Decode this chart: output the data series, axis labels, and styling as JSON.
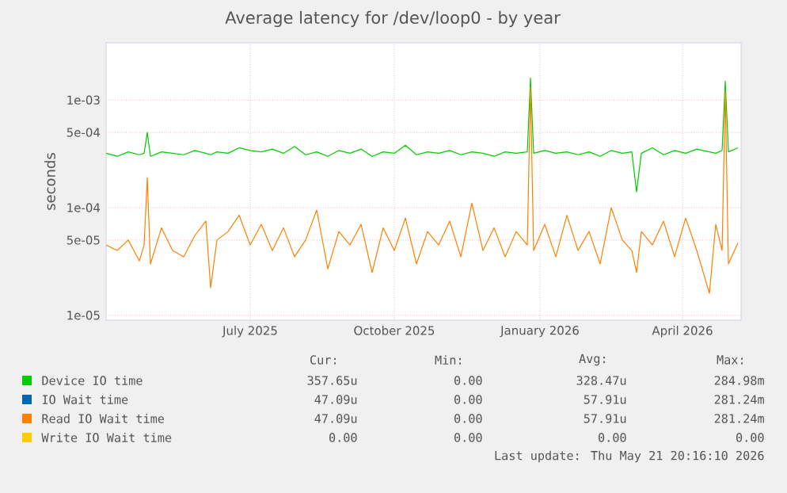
{
  "chart_data": {
    "type": "line",
    "title": "Average latency for /dev/loop0 - by year",
    "ylabel": "seconds",
    "log": "y",
    "grid": true,
    "legend": "bottom",
    "xlim": [
      "2025-04-16",
      "2026-05-22"
    ],
    "xticks": [
      {
        "value": "2025-07-16",
        "label": "July 2025"
      },
      {
        "value": "2025-10-15",
        "label": "October 2025"
      },
      {
        "value": "2026-01-15",
        "label": "January 2026"
      },
      {
        "value": "2026-04-15",
        "label": "April 2026"
      }
    ],
    "ylim": [
      9e-06,
      0.0034
    ],
    "yticks": [
      {
        "value": 1e-05,
        "label": "1e-05"
      },
      {
        "value": 5e-05,
        "label": "5e-05"
      },
      {
        "value": 0.0001,
        "label": "1e-04"
      },
      {
        "value": 0.0005,
        "label": "5e-04"
      },
      {
        "value": 0.001,
        "label": "1e-03"
      }
    ],
    "x": [
      "2025-04-16",
      "2025-04-23",
      "2025-04-30",
      "2025-05-07",
      "2025-05-10",
      "2025-05-12",
      "2025-05-14",
      "2025-05-21",
      "2025-05-28",
      "2025-06-04",
      "2025-06-11",
      "2025-06-18",
      "2025-06-21",
      "2025-06-25",
      "2025-07-02",
      "2025-07-09",
      "2025-07-16",
      "2025-07-23",
      "2025-07-30",
      "2025-08-06",
      "2025-08-13",
      "2025-08-20",
      "2025-08-27",
      "2025-09-03",
      "2025-09-10",
      "2025-09-17",
      "2025-09-24",
      "2025-10-01",
      "2025-10-08",
      "2025-10-15",
      "2025-10-22",
      "2025-10-29",
      "2025-11-05",
      "2025-11-12",
      "2025-11-19",
      "2025-11-26",
      "2025-12-03",
      "2025-12-10",
      "2025-12-17",
      "2025-12-24",
      "2025-12-31",
      "2026-01-07",
      "2026-01-09",
      "2026-01-11",
      "2026-01-18",
      "2026-01-25",
      "2026-02-01",
      "2026-02-08",
      "2026-02-15",
      "2026-02-22",
      "2026-03-01",
      "2026-03-08",
      "2026-03-14",
      "2026-03-17",
      "2026-03-20",
      "2026-03-27",
      "2026-04-03",
      "2026-04-10",
      "2026-04-17",
      "2026-04-24",
      "2026-05-02",
      "2026-05-06",
      "2026-05-10",
      "2026-05-12",
      "2026-05-14",
      "2026-05-20"
    ],
    "series": [
      {
        "name": "Device IO time",
        "color": "#00cc00",
        "values": [
          0.00032,
          0.0003,
          0.00033,
          0.00031,
          0.00032,
          0.0005,
          0.0003,
          0.00033,
          0.00032,
          0.00031,
          0.00034,
          0.00032,
          0.00031,
          0.00033,
          0.00032,
          0.00036,
          0.00034,
          0.00033,
          0.00035,
          0.00032,
          0.00037,
          0.00031,
          0.00033,
          0.0003,
          0.00034,
          0.00032,
          0.00035,
          0.0003,
          0.00033,
          0.00032,
          0.00038,
          0.00031,
          0.00033,
          0.00032,
          0.00034,
          0.00031,
          0.00033,
          0.00032,
          0.0003,
          0.00033,
          0.00032,
          0.00033,
          0.0016,
          0.00032,
          0.00034,
          0.00032,
          0.00033,
          0.00031,
          0.00033,
          0.0003,
          0.00034,
          0.00032,
          0.00033,
          0.00014,
          0.00032,
          0.00036,
          0.00031,
          0.00034,
          0.00032,
          0.00035,
          0.00033,
          0.00032,
          0.00034,
          0.0015,
          0.00033,
          0.00036
        ]
      },
      {
        "name": "IO Wait time",
        "color": "#0066b3",
        "values": [
          null,
          null,
          null,
          null,
          null,
          null,
          null,
          null,
          null,
          null,
          null,
          null,
          null,
          null,
          null,
          null,
          null,
          null,
          null,
          null,
          null,
          null,
          null,
          null,
          null,
          null,
          null,
          null,
          null,
          null,
          null,
          null,
          null,
          null,
          null,
          null,
          null,
          null,
          null,
          null,
          null,
          null,
          null,
          null,
          null,
          null,
          null,
          null,
          null,
          null,
          null,
          null,
          null,
          null,
          null,
          null,
          null,
          null,
          null,
          null,
          null,
          null,
          null,
          null,
          null,
          null
        ]
      },
      {
        "name": "Read IO Wait time",
        "color": "#ff8000",
        "values": [
          4.5e-05,
          4e-05,
          5e-05,
          3.2e-05,
          4.5e-05,
          0.00019,
          3e-05,
          6.5e-05,
          4e-05,
          3.5e-05,
          5.5e-05,
          7.5e-05,
          1.8e-05,
          5e-05,
          6e-05,
          8.5e-05,
          4.5e-05,
          7e-05,
          4e-05,
          6.5e-05,
          3.5e-05,
          5e-05,
          9.5e-05,
          2.7e-05,
          6e-05,
          4.5e-05,
          7e-05,
          2.5e-05,
          6.5e-05,
          4e-05,
          8e-05,
          3e-05,
          6e-05,
          4.5e-05,
          7.5e-05,
          3.5e-05,
          0.00011,
          4e-05,
          6.5e-05,
          3.5e-05,
          6e-05,
          4.5e-05,
          0.0013,
          4e-05,
          7e-05,
          3.5e-05,
          8.5e-05,
          4e-05,
          6e-05,
          3e-05,
          0.0001,
          5e-05,
          4e-05,
          2.5e-05,
          6e-05,
          4.5e-05,
          7.5e-05,
          3.5e-05,
          8e-05,
          4e-05,
          1.6e-05,
          7e-05,
          4e-05,
          0.0012,
          3e-05,
          4.7e-05
        ]
      },
      {
        "name": "Write IO Wait time",
        "color": "#ffcc00",
        "values": [
          null,
          null,
          null,
          null,
          null,
          null,
          null,
          null,
          null,
          null,
          null,
          null,
          null,
          null,
          null,
          null,
          null,
          null,
          null,
          null,
          null,
          null,
          null,
          null,
          null,
          null,
          null,
          null,
          null,
          null,
          null,
          null,
          null,
          null,
          null,
          null,
          null,
          null,
          null,
          null,
          null,
          null,
          null,
          null,
          null,
          null,
          null,
          null,
          null,
          null,
          null,
          null,
          null,
          null,
          null,
          null,
          null,
          null,
          null,
          null,
          null,
          null,
          null,
          null,
          null,
          null
        ]
      }
    ],
    "annotations": [
      "Cur:",
      "Min:",
      "Avg:",
      "Max:",
      "357.65u",
      "0.00",
      "328.47u",
      "284.98m",
      "47.09u",
      "0.00",
      "57.91u",
      "281.24m",
      "47.09u",
      "0.00",
      "57.91u",
      "281.24m",
      "0.00",
      "0.00",
      "0.00",
      "0.00",
      "Last update: Thu May 21 20:16:10 2026"
    ]
  }
}
